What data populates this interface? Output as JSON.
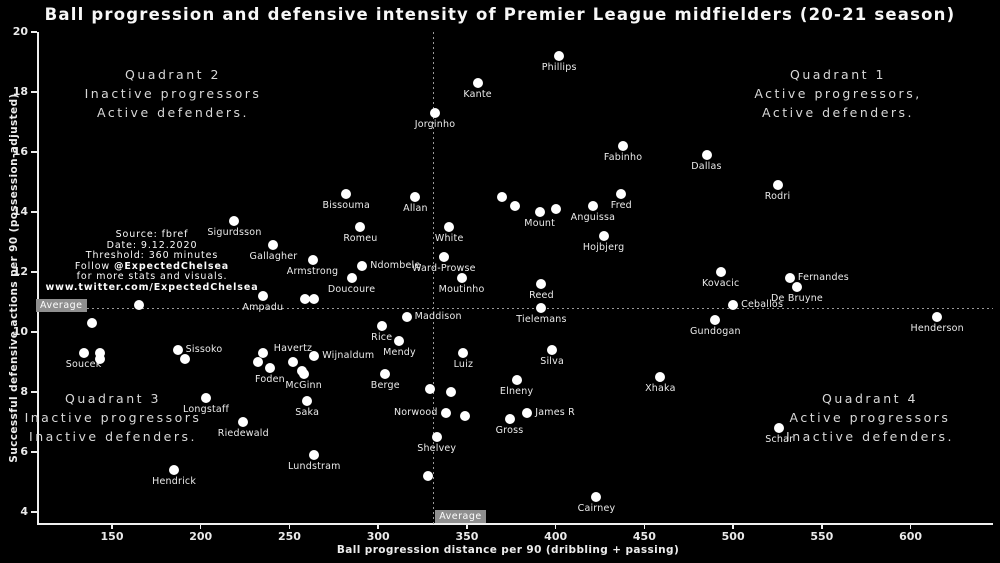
{
  "colors": {
    "background": "#000000",
    "point": "#ffffff",
    "text": "#ffffff",
    "muted_text": "#d8d8d8",
    "badge_bg": "#8f8f8f"
  },
  "quadrants": [
    {
      "text": "Quadrant 1\nActive progressors,\nActive defenders."
    },
    {
      "text": "Quadrant 2\nInactive progressors\nActive defenders."
    },
    {
      "text": "Quadrant 3\nInactive progressors\nInactive defenders."
    },
    {
      "text": "Quadrant 4\nActive progressors\nInactive defenders."
    }
  ],
  "source_note": {
    "line1": "Source: fbref",
    "line2": "Date: 9.12.2020",
    "line3": "Threshold: 360 minutes",
    "line4_prefix": "Follow ",
    "line4_handle": "@ExpectedChelsea",
    "line5": "for more stats and visuals.",
    "line6": "www.twitter.com/ExpectedChelsea"
  },
  "chart_data": {
    "type": "scatter",
    "title": "Ball progression and defensive intensity of Premier League midfielders (20-21 season)",
    "xlabel": "Ball progression distance per 90 (dribbling + passing)",
    "ylabel": "Successful defensive actions per 90 (possession-adjusted)",
    "xlim": [
      108,
      648
    ],
    "ylim": [
      3.6,
      20.2
    ],
    "x_ticks": [
      150,
      200,
      250,
      300,
      350,
      400,
      450,
      500,
      550,
      600
    ],
    "y_ticks": [
      20,
      18,
      16,
      14,
      12,
      10,
      8,
      6,
      4
    ],
    "grid": false,
    "average": {
      "x": 331,
      "y": 10.8,
      "label": "Average"
    },
    "points": [
      {
        "name": "Phillips",
        "x": 402,
        "y": 19.2,
        "label": "below"
      },
      {
        "name": "Kante",
        "x": 356,
        "y": 18.3,
        "label": "below"
      },
      {
        "name": "Jorginho",
        "x": 332,
        "y": 17.3,
        "label": "below"
      },
      {
        "name": "Fabinho",
        "x": 438,
        "y": 16.2,
        "label": "below"
      },
      {
        "name": "Dallas",
        "x": 485,
        "y": 15.9,
        "label": "below"
      },
      {
        "name": "Rodri",
        "x": 525,
        "y": 14.9,
        "label": "below"
      },
      {
        "name": "Fred",
        "x": 437,
        "y": 14.6,
        "label": "below"
      },
      {
        "name": "Bissouma",
        "x": 282,
        "y": 14.6,
        "label": "below"
      },
      {
        "name": "Allan",
        "x": 321,
        "y": 14.5,
        "label": "below"
      },
      {
        "name": "",
        "x": 370,
        "y": 14.5
      },
      {
        "name": "",
        "x": 377,
        "y": 14.2
      },
      {
        "name": "Mount",
        "x": 391,
        "y": 14.0,
        "label": "below"
      },
      {
        "name": "",
        "x": 400,
        "y": 14.1
      },
      {
        "name": "Anguissa",
        "x": 421,
        "y": 14.2,
        "label": "below"
      },
      {
        "name": "Sigurdsson",
        "x": 219,
        "y": 13.7,
        "label": "below"
      },
      {
        "name": "Romeu",
        "x": 290,
        "y": 13.5,
        "label": "below"
      },
      {
        "name": "White",
        "x": 340,
        "y": 13.5,
        "label": "below"
      },
      {
        "name": "Hojbjerg",
        "x": 427,
        "y": 13.2,
        "label": "below"
      },
      {
        "name": "Gallagher",
        "x": 241,
        "y": 12.9,
        "label": "below"
      },
      {
        "name": "Ward-Prowse",
        "x": 337,
        "y": 12.5,
        "label": "below"
      },
      {
        "name": "Armstrong",
        "x": 263,
        "y": 12.4,
        "label": "below"
      },
      {
        "name": "Ndombele",
        "x": 291,
        "y": 12.2,
        "label": "right"
      },
      {
        "name": "Kovacic",
        "x": 493,
        "y": 12.0,
        "label": "below"
      },
      {
        "name": "Doucoure",
        "x": 285,
        "y": 11.8,
        "label": "below"
      },
      {
        "name": "Moutinho",
        "x": 347,
        "y": 11.8,
        "label": "below"
      },
      {
        "name": "Fernandes",
        "x": 532,
        "y": 11.8,
        "label": "right"
      },
      {
        "name": "Reed",
        "x": 392,
        "y": 11.6,
        "label": "below"
      },
      {
        "name": "De Bruyne",
        "x": 536,
        "y": 11.5,
        "label": "below"
      },
      {
        "name": "Ampadu",
        "x": 235,
        "y": 11.2,
        "label": "below"
      },
      {
        "name": "",
        "x": 259,
        "y": 11.1
      },
      {
        "name": "",
        "x": 264,
        "y": 11.1
      },
      {
        "name": "Ceballos",
        "x": 500,
        "y": 10.9,
        "label": "right"
      },
      {
        "name": "",
        "x": 165,
        "y": 10.9
      },
      {
        "name": "Tielemans",
        "x": 392,
        "y": 10.8,
        "label": "below"
      },
      {
        "name": "Maddison",
        "x": 316,
        "y": 10.5,
        "label": "right"
      },
      {
        "name": "Henderson",
        "x": 615,
        "y": 10.5,
        "label": "below"
      },
      {
        "name": "Gundogan",
        "x": 490,
        "y": 10.4,
        "label": "below"
      },
      {
        "name": "",
        "x": 139,
        "y": 10.3
      },
      {
        "name": "Rice",
        "x": 302,
        "y": 10.2,
        "label": "below"
      },
      {
        "name": "Mendy",
        "x": 312,
        "y": 9.7,
        "label": "below"
      },
      {
        "name": "Sissoko",
        "x": 187,
        "y": 9.4,
        "label": "right"
      },
      {
        "name": "",
        "x": 191,
        "y": 9.1
      },
      {
        "name": "Soucek",
        "x": 134,
        "y": 9.3,
        "label": "below"
      },
      {
        "name": "",
        "x": 143,
        "y": 9.3
      },
      {
        "name": "",
        "x": 143,
        "y": 9.1
      },
      {
        "name": "Silva",
        "x": 398,
        "y": 9.4,
        "label": "below"
      },
      {
        "name": "Luiz",
        "x": 348,
        "y": 9.3,
        "label": "below"
      },
      {
        "name": "",
        "x": 235,
        "y": 9.3
      },
      {
        "name": "Wijnaldum",
        "x": 264,
        "y": 9.2,
        "label": "right"
      },
      {
        "name": "Havertz",
        "x": 252,
        "y": 9.0,
        "label": "above"
      },
      {
        "name": "",
        "x": 232,
        "y": 9.0
      },
      {
        "name": "Foden",
        "x": 239,
        "y": 8.8,
        "label": "below"
      },
      {
        "name": "McGinn",
        "x": 258,
        "y": 8.6,
        "label": "below"
      },
      {
        "name": "",
        "x": 257,
        "y": 8.7
      },
      {
        "name": "Berge",
        "x": 304,
        "y": 8.6,
        "label": "below"
      },
      {
        "name": "Xhaka",
        "x": 459,
        "y": 8.5,
        "label": "below"
      },
      {
        "name": "Elneny",
        "x": 378,
        "y": 8.4,
        "label": "below"
      },
      {
        "name": "",
        "x": 329,
        "y": 8.1
      },
      {
        "name": "",
        "x": 341,
        "y": 8.0
      },
      {
        "name": "Longstaff",
        "x": 203,
        "y": 7.8,
        "label": "below"
      },
      {
        "name": "Saka",
        "x": 260,
        "y": 7.7,
        "label": "below"
      },
      {
        "name": "Norwood",
        "x": 338,
        "y": 7.3,
        "label": "left"
      },
      {
        "name": "",
        "x": 349,
        "y": 7.2
      },
      {
        "name": "James R",
        "x": 384,
        "y": 7.3,
        "label": "right"
      },
      {
        "name": "Gross",
        "x": 374,
        "y": 7.1,
        "label": "below"
      },
      {
        "name": "Riedewald",
        "x": 224,
        "y": 7.0,
        "label": "below"
      },
      {
        "name": "Schar",
        "x": 526,
        "y": 6.8,
        "label": "below"
      },
      {
        "name": "Shelvey",
        "x": 333,
        "y": 6.5,
        "label": "below"
      },
      {
        "name": "Lundstram",
        "x": 264,
        "y": 5.9,
        "label": "below"
      },
      {
        "name": "Hendrick",
        "x": 185,
        "y": 5.4,
        "label": "below"
      },
      {
        "name": "",
        "x": 328,
        "y": 5.2
      },
      {
        "name": "Cairney",
        "x": 423,
        "y": 4.5,
        "label": "below"
      }
    ]
  }
}
